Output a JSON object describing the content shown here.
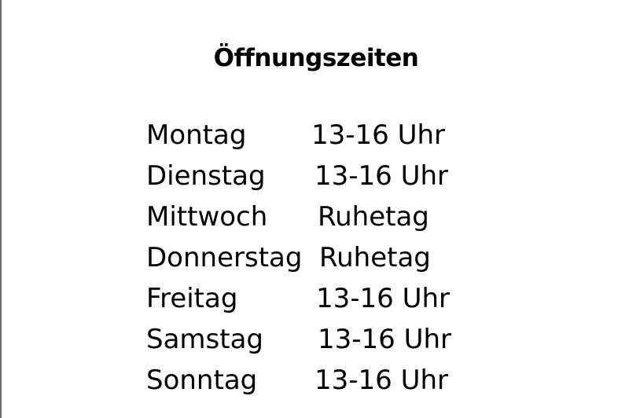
{
  "title": "Öffnungszeiten",
  "hours": [
    {
      "day": "Montag",
      "time": "13-16 Uhr"
    },
    {
      "day": "Dienstag",
      "time": "13-16 Uhr"
    },
    {
      "day": "Mittwoch",
      "time": "Ruhetag"
    },
    {
      "day": "Donnerstag",
      "time": "Ruhetag"
    },
    {
      "day": "Freitag",
      "time": "13-16 Uhr"
    },
    {
      "day": "Samstag",
      "time": "13-16 Uhr"
    },
    {
      "day": "Sonntag",
      "time": "13-16 Uhr"
    }
  ]
}
